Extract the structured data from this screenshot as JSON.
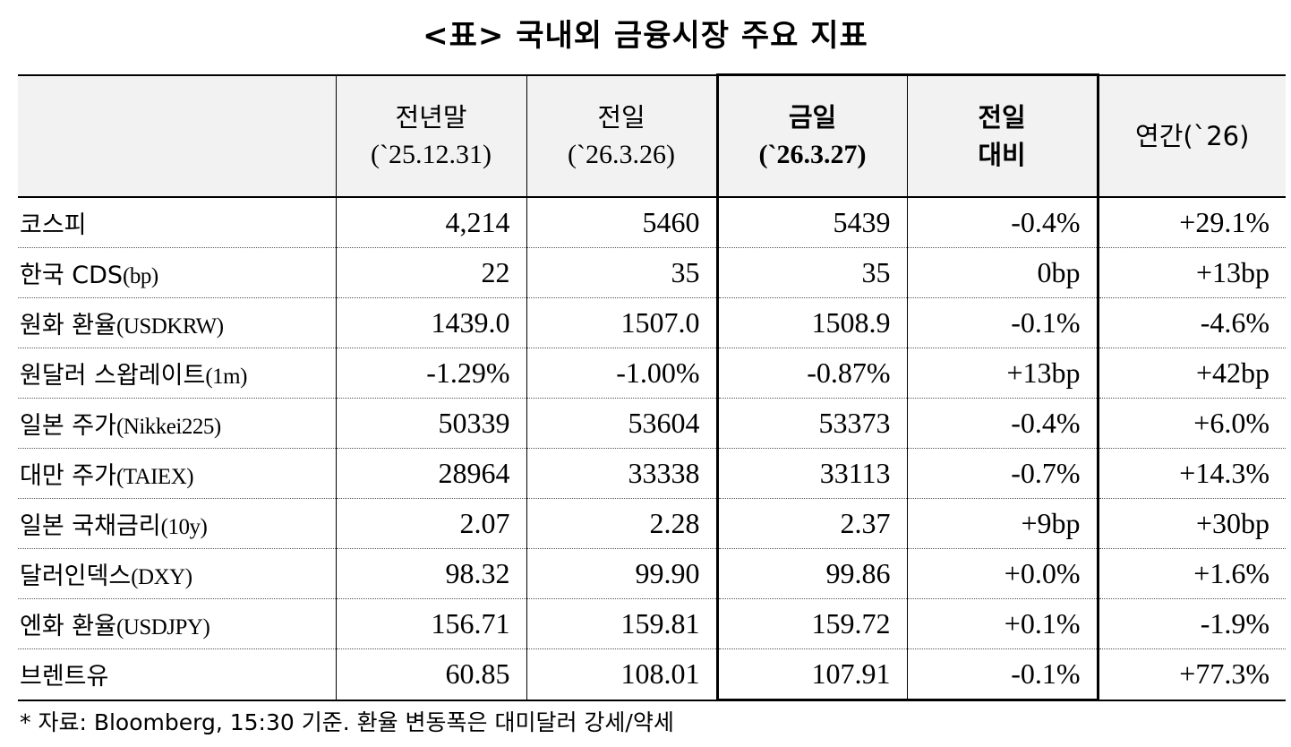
{
  "title": "<표> 국내외 금융시장 주요 지표",
  "headers": {
    "label": "",
    "prev_year_end": "전년말",
    "prev_year_end_date": "(`25.12.31)",
    "prev_day": "전일",
    "prev_day_date": "(`26.3.26)",
    "today": "금일",
    "today_date": "(`26.3.27)",
    "change_line1": "전일",
    "change_line2": "대비",
    "ytd": "연간(`26)"
  },
  "rows": [
    {
      "name_ko": "코스피",
      "name_en": "",
      "prev_year_end": "4,214",
      "prev_day": "5460",
      "today": "5439",
      "change": "-0.4%",
      "ytd": "+29.1%"
    },
    {
      "name_ko": "한국 CDS",
      "name_en": "(bp)",
      "prev_year_end": "22",
      "prev_day": "35",
      "today": "35",
      "change": "0bp",
      "ytd": "+13bp"
    },
    {
      "name_ko": "원화 환율",
      "name_en": "(USDKRW)",
      "prev_year_end": "1439.0",
      "prev_day": "1507.0",
      "today": "1508.9",
      "change": "-0.1%",
      "ytd": "-4.6%"
    },
    {
      "name_ko": "원달러 스왑레이트",
      "name_en": "(1m)",
      "prev_year_end": "-1.29%",
      "prev_day": "-1.00%",
      "today": "-0.87%",
      "change": "+13bp",
      "ytd": "+42bp"
    },
    {
      "name_ko": "일본 주가",
      "name_en": "(Nikkei225)",
      "prev_year_end": "50339",
      "prev_day": "53604",
      "today": "53373",
      "change": "-0.4%",
      "ytd": "+6.0%"
    },
    {
      "name_ko": "대만 주가",
      "name_en": "(TAIEX)",
      "prev_year_end": "28964",
      "prev_day": "33338",
      "today": "33113",
      "change": "-0.7%",
      "ytd": "+14.3%"
    },
    {
      "name_ko": "일본 국채금리",
      "name_en": "(10y)",
      "prev_year_end": "2.07",
      "prev_day": "2.28",
      "today": "2.37",
      "change": "+9bp",
      "ytd": "+30bp"
    },
    {
      "name_ko": "달러인덱스",
      "name_en": "(DXY)",
      "prev_year_end": "98.32",
      "prev_day": "99.90",
      "today": "99.86",
      "change": "+0.0%",
      "ytd": "+1.6%"
    },
    {
      "name_ko": "엔화 환율",
      "name_en": "(USDJPY)",
      "prev_year_end": "156.71",
      "prev_day": "159.81",
      "today": "159.72",
      "change": "+0.1%",
      "ytd": "-1.9%"
    },
    {
      "name_ko": "브렌트유",
      "name_en": "",
      "prev_year_end": "60.85",
      "prev_day": "108.01",
      "today": "107.91",
      "change": "-0.1%",
      "ytd": "+77.3%"
    }
  ],
  "footnote": "* 자료: Bloomberg, 15:30 기준. 환율 변동폭은 대미달러 강세/약세"
}
